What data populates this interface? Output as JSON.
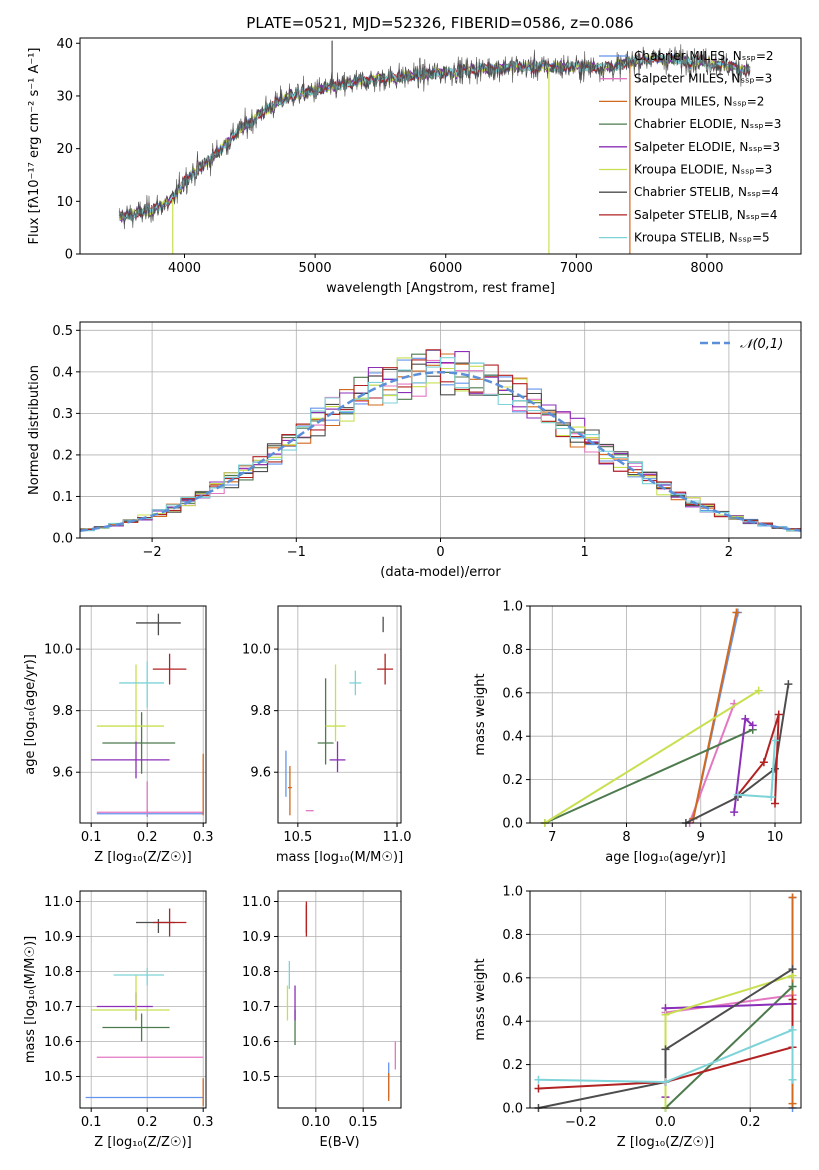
{
  "colors": [
    "#6495ed",
    "#e377c2",
    "#d2691e",
    "#4d7a4d",
    "#8b2fb8",
    "#c8e050",
    "#4d4d4d",
    "#b22222",
    "#7dd3d8"
  ],
  "chart_data": [
    {
      "id": "spectrum",
      "type": "line",
      "title": "PLATE=0521, MJD=52326, FIBERID=0586, z=0.086",
      "xlabel": "wavelength [Angstrom, rest frame]",
      "ylabel": "Flux [fλ10⁻¹⁷ erg cm⁻² s⁻¹ A⁻¹]",
      "xlim": [
        3200,
        8720
      ],
      "ylim": [
        0,
        41
      ],
      "xticks": [
        4000,
        5000,
        6000,
        7000,
        8000
      ],
      "yticks": [
        0,
        10,
        20,
        30,
        40
      ],
      "grid": false,
      "legend_position": "upper right",
      "legend": [
        "Chabrier MILES, Nₛₛₚ=2",
        "Salpeter MILES, Nₛₛₚ=3",
        "Kroupa MILES, Nₛₛₚ=2",
        "Chabrier ELODIE, Nₛₛₚ=3",
        "Salpeter ELODIE, Nₛₛₚ=3",
        "Kroupa ELODIE, Nₛₛₚ=3",
        "Chabrier STELIB, Nₛₛₚ=4",
        "Salpeter STELIB, Nₛₛₚ=4",
        "Kroupa STELIB, Nₛₛₚ=5"
      ],
      "continuum": [
        [
          3500,
          7
        ],
        [
          3700,
          8
        ],
        [
          3900,
          10
        ],
        [
          4000,
          14
        ],
        [
          4200,
          18
        ],
        [
          4400,
          23
        ],
        [
          4600,
          27
        ],
        [
          4800,
          30
        ],
        [
          5000,
          31
        ],
        [
          5200,
          32
        ],
        [
          5400,
          33
        ],
        [
          5600,
          33.5
        ],
        [
          5800,
          34
        ],
        [
          6000,
          34.5
        ],
        [
          6200,
          35
        ],
        [
          6500,
          35.5
        ],
        [
          6800,
          35.5
        ],
        [
          7000,
          35.5
        ],
        [
          7300,
          35.5
        ],
        [
          7500,
          37
        ],
        [
          7700,
          37
        ],
        [
          8000,
          36.5
        ],
        [
          8300,
          35
        ]
      ],
      "observed_x_range": [
        3500,
        8330
      ],
      "spikes": [
        {
          "x": 5130,
          "y": 40.5
        },
        {
          "x": 7410,
          "y": 0
        },
        {
          "x": 6790,
          "y": 0
        },
        {
          "x": 3910,
          "y": 0
        }
      ]
    },
    {
      "id": "residuals",
      "type": "histogram",
      "xlabel": "(data-model)/error",
      "ylabel": "Normed distribution",
      "xlim": [
        -2.5,
        2.5
      ],
      "ylim": [
        0,
        0.52
      ],
      "xticks": [
        -2,
        -1,
        0,
        1,
        2
      ],
      "yticks": [
        0.0,
        0.1,
        0.2,
        0.3,
        0.4,
        0.5
      ],
      "grid": true,
      "bin_width": 0.1,
      "bins_start": -2.5,
      "reference_curve": "normal(0,1)",
      "legend": [
        "𝒩(0,1)"
      ],
      "legend_position": "upper right",
      "note": "nine step histograms, one per model"
    },
    {
      "id": "age-vs-Z",
      "type": "errorbar",
      "xlabel": "Z [log₁₀(Z/Z☉)]",
      "ylabel": "age  [log₁₀(age/yr)]",
      "xlim": [
        0.08,
        0.305
      ],
      "ylim": [
        9.435,
        10.14
      ],
      "xticks": [
        0.1,
        0.2,
        0.3
      ],
      "yticks": [
        9.6,
        9.8,
        10.0
      ],
      "grid": true,
      "points": [
        {
          "x": 0.2,
          "xerr": [
            0.09,
            0.1
          ],
          "y": 9.465,
          "yerr": [
            0.01,
            0.01
          ]
        },
        {
          "x": 0.2,
          "xerr": [
            0.09,
            0.1
          ],
          "y": 9.47,
          "yerr": [
            0.01,
            0.1
          ]
        },
        {
          "x": 0.3,
          "xerr": [
            0.0,
            0.0
          ],
          "y": 9.55,
          "yerr": [
            0.09,
            0.11
          ]
        },
        {
          "x": 0.19,
          "xerr": [
            0.07,
            0.06
          ],
          "y": 9.695,
          "yerr": [
            0.1,
            0.1
          ]
        },
        {
          "x": 0.18,
          "xerr": [
            0.08,
            0.06
          ],
          "y": 9.64,
          "yerr": [
            0.06,
            0.06
          ]
        },
        {
          "x": 0.18,
          "xerr": [
            0.07,
            0.05
          ],
          "y": 9.75,
          "yerr": [
            0.05,
            0.2
          ]
        },
        {
          "x": 0.22,
          "xerr": [
            0.04,
            0.04
          ],
          "y": 10.085,
          "yerr": [
            0.04,
            0.03
          ]
        },
        {
          "x": 0.24,
          "xerr": [
            0.03,
            0.03
          ],
          "y": 9.935,
          "yerr": [
            0.05,
            0.05
          ]
        },
        {
          "x": 0.2,
          "xerr": [
            0.05,
            0.03
          ],
          "y": 9.89,
          "yerr": [
            0.08,
            0.07
          ]
        }
      ]
    },
    {
      "id": "age-vs-mass",
      "type": "errorbar",
      "xlabel": "mass [log₁₀(M/M☉)]",
      "ylabel": "",
      "xlim": [
        10.4,
        11.02
      ],
      "ylim": [
        9.435,
        10.14
      ],
      "xticks": [
        10.5,
        11.0
      ],
      "yticks": [
        9.6,
        9.8,
        10.0
      ],
      "grid": true,
      "points": [
        {
          "x": 10.44,
          "xerr": [
            0.0,
            0.0
          ],
          "y": 9.52,
          "yerr": [
            0.0,
            0.15
          ]
        },
        {
          "x": 10.56,
          "xerr": [
            0.02,
            0.02
          ],
          "y": 9.475,
          "yerr": [
            0.0,
            0.0
          ]
        },
        {
          "x": 10.46,
          "xerr": [
            0.01,
            0.01
          ],
          "y": 9.55,
          "yerr": [
            0.09,
            0.07
          ]
        },
        {
          "x": 10.64,
          "xerr": [
            0.04,
            0.04
          ],
          "y": 9.695,
          "yerr": [
            0.07,
            0.21
          ]
        },
        {
          "x": 10.7,
          "xerr": [
            0.04,
            0.04
          ],
          "y": 9.64,
          "yerr": [
            0.04,
            0.06
          ]
        },
        {
          "x": 10.69,
          "xerr": [
            0.05,
            0.05
          ],
          "y": 9.75,
          "yerr": [
            0.05,
            0.2
          ]
        },
        {
          "x": 10.93,
          "xerr": [
            0.0,
            0.0
          ],
          "y": 10.085,
          "yerr": [
            0.03,
            0.02
          ]
        },
        {
          "x": 10.94,
          "xerr": [
            0.04,
            0.04
          ],
          "y": 9.935,
          "yerr": [
            0.05,
            0.05
          ]
        },
        {
          "x": 10.79,
          "xerr": [
            0.03,
            0.03
          ],
          "y": 9.89,
          "yerr": [
            0.04,
            0.04
          ]
        }
      ]
    },
    {
      "id": "mass-weight-vs-age",
      "type": "line",
      "xlabel": "age  [log₁₀(age/yr)]",
      "ylabel": "mass weight",
      "xlim": [
        6.7,
        10.35
      ],
      "ylim": [
        0,
        1
      ],
      "xticks": [
        7,
        8,
        9,
        10
      ],
      "yticks": [
        0.0,
        0.2,
        0.4,
        0.6,
        0.8,
        1.0
      ],
      "grid": true,
      "series": [
        {
          "x": [
            8.9,
            9.5
          ],
          "y": [
            0.02,
            0.97
          ]
        },
        {
          "x": [
            8.85,
            9.45
          ],
          "y": [
            0.0,
            0.55
          ]
        },
        {
          "x": [
            8.9,
            9.48
          ],
          "y": [
            0.02,
            0.97
          ]
        },
        {
          "x": [
            6.9,
            9.7
          ],
          "y": [
            0.0,
            0.43
          ]
        },
        {
          "x": [
            9.45,
            9.6,
            9.7
          ],
          "y": [
            0.05,
            0.48,
            0.45
          ]
        },
        {
          "x": [
            6.9,
            9.78
          ],
          "y": [
            0.0,
            0.61
          ]
        },
        {
          "x": [
            8.8,
            9.5,
            10.0,
            10.18
          ],
          "y": [
            0.0,
            0.12,
            0.25,
            0.64
          ]
        },
        {
          "x": [
            9.5,
            9.85,
            10.05,
            10.0
          ],
          "y": [
            0.13,
            0.28,
            0.5,
            0.09
          ]
        },
        {
          "x": [
            9.5,
            9.95,
            10.0
          ],
          "y": [
            0.13,
            0.12,
            0.38
          ]
        }
      ]
    },
    {
      "id": "mass-vs-Z",
      "type": "errorbar",
      "xlabel": "Z [log₁₀(Z/Z☉)]",
      "ylabel": "mass [log₁₀(M/M☉)]",
      "xlim": [
        0.08,
        0.305
      ],
      "ylim": [
        10.41,
        11.03
      ],
      "xticks": [
        0.1,
        0.2,
        0.3
      ],
      "yticks": [
        10.5,
        10.6,
        10.7,
        10.8,
        10.9,
        11.0
      ],
      "grid": true,
      "points": [
        {
          "x": 0.2,
          "xerr": [
            0.11,
            0.1
          ],
          "y": 10.44,
          "yerr": [
            0.0,
            0.0
          ]
        },
        {
          "x": 0.2,
          "xerr": [
            0.09,
            0.1
          ],
          "y": 10.555,
          "yerr": [
            0.0,
            0.0
          ]
        },
        {
          "x": 0.3,
          "xerr": [
            0.0,
            0.0
          ],
          "y": 10.455,
          "yerr": [
            0.04,
            0.04
          ]
        },
        {
          "x": 0.19,
          "xerr": [
            0.07,
            0.05
          ],
          "y": 10.64,
          "yerr": [
            0.04,
            0.04
          ]
        },
        {
          "x": 0.18,
          "xerr": [
            0.07,
            0.03
          ],
          "y": 10.7,
          "yerr": [
            0.04,
            0.04
          ]
        },
        {
          "x": 0.18,
          "xerr": [
            0.08,
            0.06
          ],
          "y": 10.69,
          "yerr": [
            0.03,
            0.1
          ]
        },
        {
          "x": 0.22,
          "xerr": [
            0.04,
            0.03
          ],
          "y": 10.94,
          "yerr": [
            0.03,
            0.01
          ]
        },
        {
          "x": 0.24,
          "xerr": [
            0.03,
            0.03
          ],
          "y": 10.94,
          "yerr": [
            0.04,
            0.04
          ]
        },
        {
          "x": 0.2,
          "xerr": [
            0.06,
            0.03
          ],
          "y": 10.79,
          "yerr": [
            0.03,
            0.02
          ]
        }
      ]
    },
    {
      "id": "mass-vs-EBV",
      "type": "errorbar",
      "xlabel": "E(B-V)",
      "ylabel": "",
      "xlim": [
        0.06,
        0.19
      ],
      "ylim": [
        10.41,
        11.03
      ],
      "xticks": [
        0.1,
        0.15
      ],
      "yticks": [
        10.5,
        10.6,
        10.7,
        10.8,
        10.9,
        11.0
      ],
      "grid": true,
      "points": [
        {
          "x": 0.177,
          "xerr": [
            0.0,
            0.0
          ],
          "y": 10.49,
          "yerr": [
            0.05,
            0.05
          ]
        },
        {
          "x": 0.184,
          "xerr": [
            0.0,
            0.0
          ],
          "y": 10.56,
          "yerr": [
            0.04,
            0.04
          ]
        },
        {
          "x": 0.177,
          "xerr": [
            0.0,
            0.0
          ],
          "y": 10.47,
          "yerr": [
            0.04,
            0.04
          ]
        },
        {
          "x": 0.078,
          "xerr": [
            0.0,
            0.0
          ],
          "y": 10.64,
          "yerr": [
            0.05,
            0.05
          ]
        },
        {
          "x": 0.078,
          "xerr": [
            0.0,
            0.0
          ],
          "y": 10.71,
          "yerr": [
            0.05,
            0.05
          ]
        },
        {
          "x": 0.07,
          "xerr": [
            0.0,
            0.0
          ],
          "y": 10.71,
          "yerr": [
            0.05,
            0.05
          ]
        },
        {
          "x": 0.09,
          "xerr": [
            0.0,
            0.0
          ],
          "y": 10.95,
          "yerr": [
            0.04,
            0.04
          ]
        },
        {
          "x": 0.09,
          "xerr": [
            0.0,
            0.0
          ],
          "y": 10.95,
          "yerr": [
            0.05,
            0.05
          ]
        },
        {
          "x": 0.072,
          "xerr": [
            0.0,
            0.0
          ],
          "y": 10.79,
          "yerr": [
            0.04,
            0.04
          ]
        }
      ]
    },
    {
      "id": "mass-weight-vs-Z",
      "type": "line",
      "xlabel": "Z [log₁₀(Z/Z☉)]",
      "ylabel": "mass weight",
      "xlim": [
        -0.32,
        0.32
      ],
      "ylim": [
        0,
        1
      ],
      "xticks": [
        -0.2,
        0.0,
        0.2
      ],
      "yticks": [
        0.0,
        0.2,
        0.4,
        0.6,
        0.8,
        1.0
      ],
      "grid": true,
      "series": [
        {
          "x": [
            0.3,
            0.3
          ],
          "y": [
            0.0,
            0.97
          ]
        },
        {
          "x": [
            0.0,
            0.3
          ],
          "y": [
            0.44,
            0.52
          ]
        },
        {
          "x": [
            0.3,
            0.3
          ],
          "y": [
            0.02,
            0.97
          ]
        },
        {
          "x": [
            0.0,
            0.3
          ],
          "y": [
            0.0,
            0.56
          ]
        },
        {
          "x": [
            0.0,
            0.0,
            0.3
          ],
          "y": [
            0.05,
            0.46,
            0.48
          ]
        },
        {
          "x": [
            0.0,
            0.0,
            0.3
          ],
          "y": [
            0.0,
            0.43,
            0.61
          ]
        },
        {
          "x": [
            -0.3,
            0.0,
            0.0,
            0.3
          ],
          "y": [
            0.0,
            0.12,
            0.27,
            0.64
          ]
        },
        {
          "x": [
            -0.3,
            0.0,
            0.3,
            0.3
          ],
          "y": [
            0.09,
            0.12,
            0.28,
            0.5
          ]
        },
        {
          "x": [
            -0.3,
            0.0,
            0.3,
            0.3
          ],
          "y": [
            0.13,
            0.12,
            0.36,
            0.13
          ]
        }
      ]
    }
  ]
}
